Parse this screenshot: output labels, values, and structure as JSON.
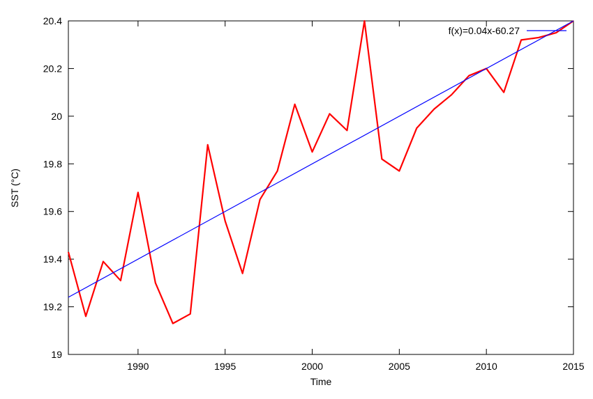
{
  "chart_data": {
    "type": "line",
    "title": "",
    "xlabel": "Time",
    "ylabel": "SST (°C)",
    "xlim": [
      1986,
      2015
    ],
    "ylim": [
      19,
      20.4
    ],
    "x_ticks": [
      1990,
      1995,
      2000,
      2005,
      2010,
      2015
    ],
    "x_tick_labels": [
      "1990",
      "1995",
      "2000",
      "2005",
      "2010",
      "2015"
    ],
    "y_ticks": [
      19,
      19.2,
      19.4,
      19.6,
      19.8,
      20,
      20.2,
      20.4
    ],
    "y_tick_labels": [
      "19",
      "19.2",
      "19.4",
      "19.6",
      "19.8",
      "20",
      "20.2",
      "20.4"
    ],
    "grid": false,
    "legend_position": "top-right",
    "series": [
      {
        "color": "#ff0000",
        "x": [
          1986,
          1987,
          1988,
          1989,
          1990,
          1991,
          1992,
          1993,
          1994,
          1995,
          1996,
          1997,
          1998,
          1999,
          2000,
          2001,
          2002,
          2003,
          2004,
          2005,
          2006,
          2007,
          2008,
          2009,
          2010,
          2011,
          2012,
          2013,
          2014,
          2015
        ],
        "y": [
          19.43,
          19.16,
          19.39,
          19.31,
          19.68,
          19.3,
          19.13,
          19.17,
          19.88,
          19.56,
          19.34,
          19.65,
          19.77,
          20.05,
          19.85,
          20.01,
          19.94,
          20.4,
          19.82,
          19.77,
          19.95,
          20.03,
          20.09,
          20.17,
          20.2,
          20.1,
          20.32,
          20.33,
          20.35,
          20.4
        ]
      },
      {
        "name": "f(x)=0.04x-60.27",
        "color": "#0000ff",
        "x": [
          1986,
          2015
        ],
        "y": [
          19.24,
          20.4
        ]
      }
    ]
  }
}
